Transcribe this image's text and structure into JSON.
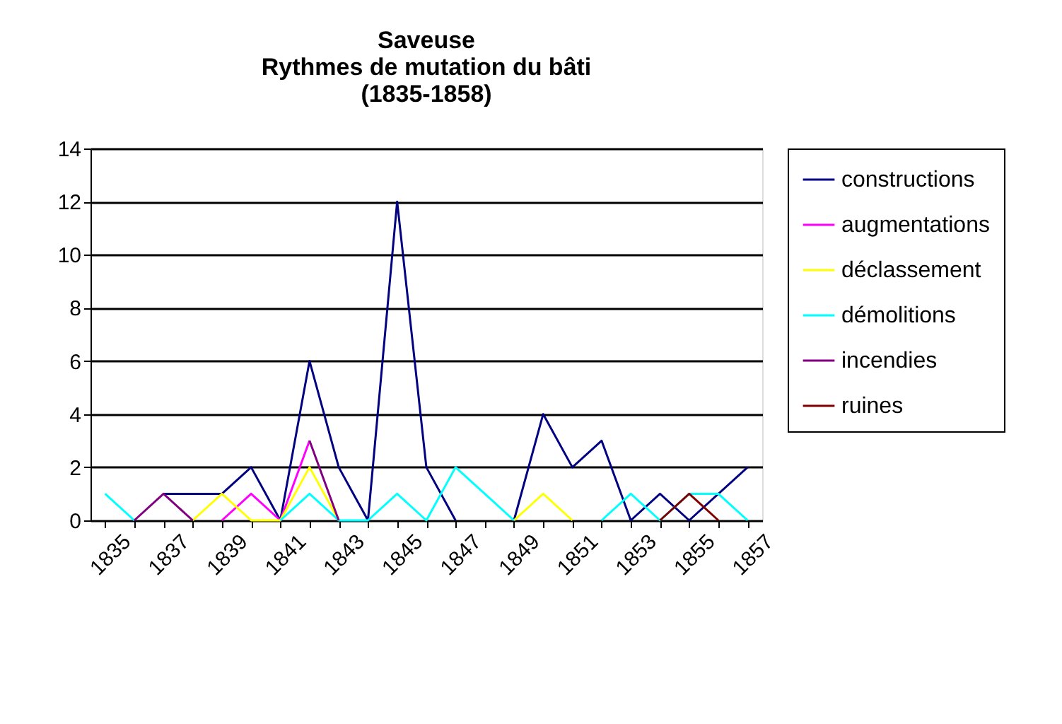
{
  "chart_data": {
    "type": "line",
    "title": "Saveuse\nRythmes de mutation du bâti\n(1835-1858)",
    "categories": [
      "1835",
      null,
      "1837",
      null,
      "1839",
      null,
      "1841",
      null,
      "1843",
      null,
      "1845",
      null,
      "1847",
      null,
      "1849",
      null,
      "1851",
      null,
      "1853",
      null,
      "1855",
      null,
      "1857"
    ],
    "series": [
      {
        "name": "constructions",
        "color": "#000080",
        "values": [
          null,
          null,
          1,
          1,
          1,
          2,
          0,
          6,
          2,
          0,
          12,
          2,
          0,
          null,
          0,
          4,
          2,
          3,
          0,
          1,
          0,
          1,
          2
        ]
      },
      {
        "name": "augmentations",
        "color": "#ff00ff",
        "values": [
          null,
          null,
          null,
          null,
          0,
          1,
          0,
          3,
          null,
          null,
          null,
          null,
          null,
          null,
          null,
          null,
          null,
          null,
          null,
          null,
          null,
          null,
          null
        ]
      },
      {
        "name": "déclassement",
        "color": "#ffff00",
        "values": [
          null,
          null,
          null,
          0,
          1,
          0,
          0,
          2,
          0,
          null,
          null,
          null,
          null,
          null,
          0,
          1,
          0,
          null,
          null,
          null,
          null,
          null,
          null
        ]
      },
      {
        "name": "démolitions",
        "color": "#00ffff",
        "values": [
          1,
          0,
          null,
          null,
          null,
          null,
          0,
          1,
          0,
          0,
          1,
          0,
          2,
          1,
          0,
          null,
          null,
          0,
          1,
          0,
          1,
          1,
          0
        ]
      },
      {
        "name": "incendies",
        "color": "#800080",
        "values": [
          null,
          0,
          1,
          0,
          null,
          null,
          null,
          3,
          0,
          null,
          null,
          null,
          null,
          null,
          null,
          null,
          null,
          null,
          null,
          null,
          null,
          null,
          null
        ]
      },
      {
        "name": "ruines",
        "color": "#800000",
        "values": [
          null,
          null,
          null,
          null,
          null,
          null,
          null,
          null,
          null,
          null,
          null,
          null,
          null,
          null,
          null,
          null,
          null,
          null,
          null,
          0,
          1,
          0,
          null
        ]
      }
    ],
    "ylim": [
      0,
      14
    ],
    "yticks": [
      0,
      2,
      4,
      6,
      8,
      10,
      12,
      14
    ],
    "grid": "y",
    "legend": "right",
    "marker": "none",
    "line_style": "solid"
  }
}
